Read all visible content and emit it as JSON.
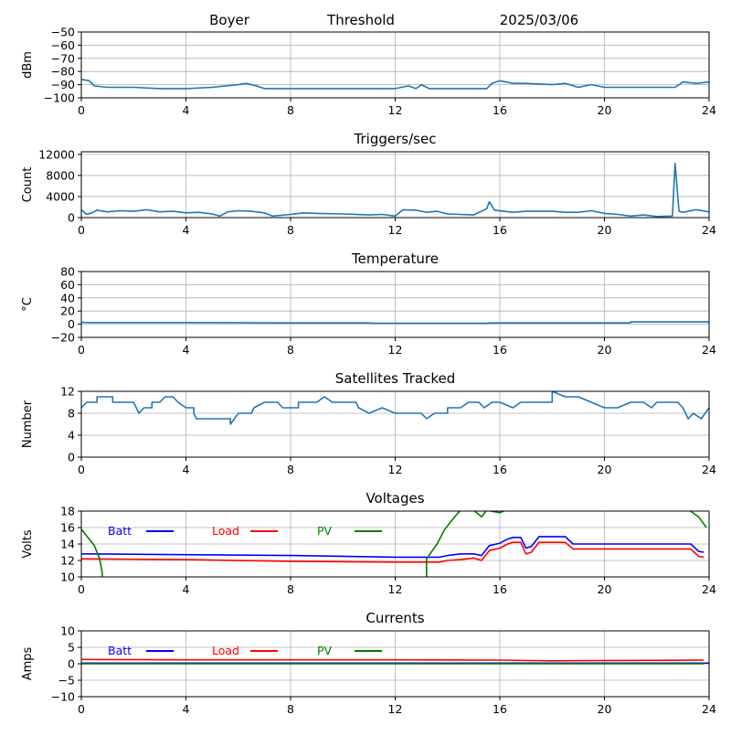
{
  "header": {
    "station": "Boyer",
    "mode": "Threshold",
    "date": "2025/03/06"
  },
  "colors": {
    "line": "#1f77b4",
    "batt": "#0000ff",
    "load": "#ff0000",
    "pv": "#008000",
    "grid": "#b0b0b0"
  },
  "chart_data": [
    {
      "type": "line",
      "title": "",
      "ylabel": "dBm",
      "xlim": [
        0,
        24
      ],
      "xticks": [
        0,
        4,
        8,
        12,
        16,
        20,
        24
      ],
      "ylim": [
        -100,
        -50
      ],
      "yticks": [
        -100,
        -90,
        -80,
        -70,
        -60,
        -50
      ],
      "grid": true,
      "series": [
        {
          "color": "#1f77b4",
          "points": [
            [
              0,
              -86
            ],
            [
              0.3,
              -87
            ],
            [
              0.5,
              -91
            ],
            [
              1,
              -92
            ],
            [
              2,
              -92
            ],
            [
              3,
              -93
            ],
            [
              4,
              -93
            ],
            [
              5,
              -92
            ],
            [
              6,
              -90
            ],
            [
              6.3,
              -89
            ],
            [
              6.7,
              -91
            ],
            [
              7,
              -93
            ],
            [
              8,
              -93
            ],
            [
              10,
              -93
            ],
            [
              12,
              -93
            ],
            [
              12.5,
              -91
            ],
            [
              12.8,
              -93
            ],
            [
              13,
              -90
            ],
            [
              13.3,
              -93
            ],
            [
              15.5,
              -93
            ],
            [
              15.7,
              -89
            ],
            [
              16,
              -87
            ],
            [
              16.5,
              -89
            ],
            [
              17,
              -89
            ],
            [
              18,
              -90
            ],
            [
              18.5,
              -89
            ],
            [
              19,
              -92
            ],
            [
              19.5,
              -90
            ],
            [
              20,
              -92
            ],
            [
              22,
              -92
            ],
            [
              22.7,
              -92
            ],
            [
              23,
              -88
            ],
            [
              23.5,
              -89
            ],
            [
              24,
              -88
            ]
          ]
        }
      ]
    },
    {
      "type": "line",
      "title": "Triggers/sec",
      "ylabel": "Count",
      "xlim": [
        0,
        24
      ],
      "xticks": [
        0,
        4,
        8,
        12,
        16,
        20,
        24
      ],
      "ylim": [
        0,
        12500
      ],
      "yticks": [
        0,
        4000,
        8000,
        12000
      ],
      "grid": true,
      "series": [
        {
          "color": "#1f77b4",
          "points": [
            [
              0,
              1500
            ],
            [
              0.2,
              600
            ],
            [
              0.4,
              900
            ],
            [
              0.6,
              1400
            ],
            [
              1,
              1100
            ],
            [
              1.5,
              1300
            ],
            [
              2,
              1200
            ],
            [
              2.5,
              1500
            ],
            [
              3,
              1100
            ],
            [
              3.5,
              1200
            ],
            [
              4,
              900
            ],
            [
              4.5,
              1000
            ],
            [
              5,
              700
            ],
            [
              5.3,
              300
            ],
            [
              5.6,
              1100
            ],
            [
              6,
              1300
            ],
            [
              6.5,
              1200
            ],
            [
              7,
              900
            ],
            [
              7.3,
              300
            ],
            [
              8,
              600
            ],
            [
              8.5,
              900
            ],
            [
              9,
              800
            ],
            [
              10,
              700
            ],
            [
              11,
              500
            ],
            [
              11.5,
              600
            ],
            [
              12,
              300
            ],
            [
              12.3,
              1500
            ],
            [
              12.8,
              1400
            ],
            [
              13.2,
              1000
            ],
            [
              13.6,
              1200
            ],
            [
              14,
              700
            ],
            [
              15,
              500
            ],
            [
              15.5,
              1700
            ],
            [
              15.6,
              3000
            ],
            [
              15.8,
              1400
            ],
            [
              16.5,
              1000
            ],
            [
              17,
              1200
            ],
            [
              18,
              1200
            ],
            [
              18.5,
              1000
            ],
            [
              19,
              1000
            ],
            [
              19.5,
              1300
            ],
            [
              20,
              800
            ],
            [
              20.5,
              600
            ],
            [
              21,
              300
            ],
            [
              21.5,
              500
            ],
            [
              22,
              200
            ],
            [
              22.6,
              300
            ],
            [
              22.7,
              10300
            ],
            [
              22.85,
              1200
            ],
            [
              23,
              1000
            ],
            [
              23.5,
              1500
            ],
            [
              24,
              1100
            ]
          ]
        }
      ]
    },
    {
      "type": "line",
      "title": "Temperature",
      "ylabel": "°C",
      "xlim": [
        0,
        24
      ],
      "xticks": [
        0,
        4,
        8,
        12,
        16,
        20,
        24
      ],
      "ylim": [
        -20,
        80
      ],
      "yticks": [
        -20,
        0,
        20,
        40,
        60,
        80
      ],
      "grid": true,
      "series": [
        {
          "color": "#1f77b4",
          "points": [
            [
              0,
              3
            ],
            [
              0.2,
              2.5
            ],
            [
              4,
              2.5
            ],
            [
              8,
              2
            ],
            [
              11,
              2
            ],
            [
              11.2,
              1.5
            ],
            [
              15.5,
              1.5
            ],
            [
              15.6,
              2
            ],
            [
              21,
              2
            ],
            [
              21,
              3.5
            ],
            [
              24,
              3.5
            ]
          ]
        }
      ]
    },
    {
      "type": "line",
      "title": "Satellites Tracked",
      "ylabel": "Number",
      "xlim": [
        0,
        24
      ],
      "xticks": [
        0,
        4,
        8,
        12,
        16,
        20,
        24
      ],
      "ylim": [
        0,
        12
      ],
      "yticks": [
        0,
        4,
        8,
        12
      ],
      "grid": true,
      "series": [
        {
          "color": "#1f77b4",
          "points": [
            [
              0,
              9
            ],
            [
              0.2,
              10
            ],
            [
              0.6,
              10
            ],
            [
              0.6,
              11
            ],
            [
              1.2,
              11
            ],
            [
              1.2,
              10
            ],
            [
              2,
              10
            ],
            [
              2.2,
              8
            ],
            [
              2.4,
              9
            ],
            [
              2.7,
              9
            ],
            [
              2.7,
              10
            ],
            [
              3,
              10
            ],
            [
              3.2,
              11
            ],
            [
              3.5,
              11
            ],
            [
              3.7,
              10
            ],
            [
              4,
              9
            ],
            [
              4.3,
              9
            ],
            [
              4.3,
              8
            ],
            [
              4.4,
              7
            ],
            [
              5.7,
              7
            ],
            [
              5.7,
              6
            ],
            [
              6,
              8
            ],
            [
              6.5,
              8
            ],
            [
              6.6,
              9
            ],
            [
              7,
              10
            ],
            [
              7.5,
              10
            ],
            [
              7.7,
              9
            ],
            [
              8.3,
              9
            ],
            [
              8.3,
              10
            ],
            [
              9,
              10
            ],
            [
              9.3,
              11
            ],
            [
              9.6,
              10
            ],
            [
              10.5,
              10
            ],
            [
              10.6,
              9
            ],
            [
              11,
              8
            ],
            [
              11.5,
              9
            ],
            [
              12,
              8
            ],
            [
              13,
              8
            ],
            [
              13.2,
              7
            ],
            [
              13.5,
              8
            ],
            [
              14,
              8
            ],
            [
              14,
              9
            ],
            [
              14.5,
              9
            ],
            [
              14.8,
              10
            ],
            [
              15.2,
              10
            ],
            [
              15.4,
              9
            ],
            [
              15.7,
              10
            ],
            [
              16,
              10
            ],
            [
              16.5,
              9
            ],
            [
              16.8,
              10
            ],
            [
              18,
              10
            ],
            [
              18,
              12
            ],
            [
              18.5,
              11
            ],
            [
              19,
              11
            ],
            [
              19.5,
              10
            ],
            [
              20,
              9
            ],
            [
              20.5,
              9
            ],
            [
              21,
              10
            ],
            [
              21.5,
              10
            ],
            [
              21.8,
              9
            ],
            [
              22,
              10
            ],
            [
              22.8,
              10
            ],
            [
              23,
              9
            ],
            [
              23.2,
              7
            ],
            [
              23.4,
              8
            ],
            [
              23.7,
              7
            ],
            [
              24,
              9
            ]
          ]
        }
      ]
    },
    {
      "type": "line",
      "title": "Voltages",
      "ylabel": "Volts",
      "xlim": [
        0,
        24
      ],
      "xticks": [
        0,
        4,
        8,
        12,
        16,
        20,
        24
      ],
      "ylim": [
        10,
        18
      ],
      "yticks": [
        10,
        12,
        14,
        16,
        18
      ],
      "grid": true,
      "legend": "top-left",
      "series": [
        {
          "name": "Batt",
          "color": "#0000ff",
          "points": [
            [
              0,
              12.8
            ],
            [
              4,
              12.7
            ],
            [
              8,
              12.6
            ],
            [
              12,
              12.4
            ],
            [
              13.7,
              12.4
            ],
            [
              14,
              12.6
            ],
            [
              14.5,
              12.8
            ],
            [
              15,
              12.8
            ],
            [
              15.3,
              12.6
            ],
            [
              15.6,
              13.8
            ],
            [
              16,
              14.1
            ],
            [
              16.3,
              14.6
            ],
            [
              16.5,
              14.8
            ],
            [
              16.8,
              14.8
            ],
            [
              17,
              13.5
            ],
            [
              17.2,
              13.7
            ],
            [
              17.5,
              14.9
            ],
            [
              18.5,
              14.9
            ],
            [
              18.8,
              14.0
            ],
            [
              23.3,
              14.0
            ],
            [
              23.6,
              13.1
            ],
            [
              23.8,
              13.0
            ]
          ]
        },
        {
          "name": "Load",
          "color": "#ff0000",
          "points": [
            [
              0,
              12.2
            ],
            [
              4,
              12.1
            ],
            [
              8,
              11.9
            ],
            [
              12,
              11.8
            ],
            [
              13.7,
              11.8
            ],
            [
              14,
              12.0
            ],
            [
              14.5,
              12.1
            ],
            [
              15,
              12.3
            ],
            [
              15.3,
              12.0
            ],
            [
              15.6,
              13.2
            ],
            [
              16,
              13.5
            ],
            [
              16.3,
              14.0
            ],
            [
              16.5,
              14.2
            ],
            [
              16.8,
              14.2
            ],
            [
              17,
              12.8
            ],
            [
              17.2,
              13.0
            ],
            [
              17.5,
              14.2
            ],
            [
              18.5,
              14.2
            ],
            [
              18.8,
              13.4
            ],
            [
              23.3,
              13.4
            ],
            [
              23.6,
              12.5
            ],
            [
              23.8,
              12.4
            ]
          ]
        },
        {
          "name": "PV",
          "color": "#008000",
          "points": [
            [
              0,
              15.8
            ],
            [
              0.5,
              13.8
            ],
            [
              0.7,
              12.2
            ],
            [
              0.8,
              10.5
            ],
            [
              0.8,
              9.5
            ],
            [
              13.2,
              9.5
            ],
            [
              13.2,
              12.2
            ],
            [
              13.6,
              14.0
            ],
            [
              13.9,
              15.8
            ],
            [
              14.3,
              17.4
            ],
            [
              14.5,
              18.1
            ],
            [
              15,
              18.1
            ],
            [
              15.3,
              17.3
            ],
            [
              15.5,
              18.1
            ],
            [
              16,
              17.8
            ],
            [
              16.3,
              18.2
            ],
            [
              23.2,
              18.2
            ],
            [
              23.6,
              17.3
            ],
            [
              23.9,
              16.0
            ]
          ]
        }
      ]
    },
    {
      "type": "line",
      "title": "Currents",
      "ylabel": "Amps",
      "xlim": [
        0,
        24
      ],
      "xticks": [
        0,
        4,
        8,
        12,
        16,
        20,
        24
      ],
      "ylim": [
        -10,
        10
      ],
      "yticks": [
        -10,
        -5,
        0,
        5,
        10
      ],
      "grid": true,
      "legend": "top-left",
      "series": [
        {
          "name": "Batt",
          "color": "#0000ff",
          "points": [
            [
              0,
              0.2
            ],
            [
              24,
              0.2
            ]
          ]
        },
        {
          "name": "Load",
          "color": "#ff0000",
          "points": [
            [
              0,
              1.3
            ],
            [
              4,
              1.2
            ],
            [
              8,
              1.2
            ],
            [
              12,
              1.2
            ],
            [
              16,
              1.1
            ],
            [
              18,
              0.9
            ],
            [
              20,
              1.0
            ],
            [
              23.8,
              1.1
            ]
          ]
        },
        {
          "name": "PV",
          "color": "#008000",
          "points": [
            [
              0,
              0
            ],
            [
              23.8,
              0
            ]
          ]
        }
      ]
    }
  ]
}
